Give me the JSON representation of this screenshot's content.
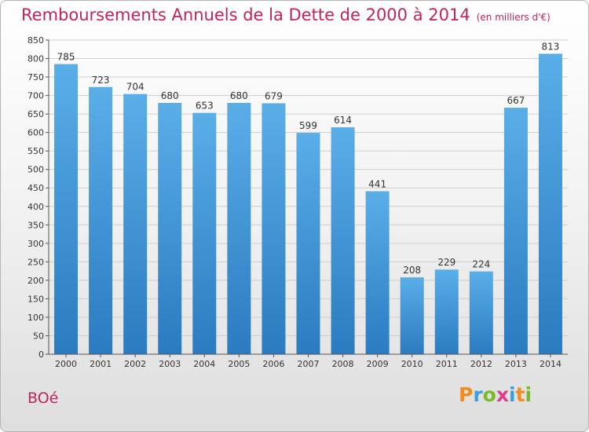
{
  "title": "Remboursements Annuels de la Dette de 2000 à 2014",
  "unit": "(en milliers d'€)",
  "town": "BOé",
  "logo": {
    "text": "Proxiti",
    "letters": [
      {
        "ch": "P",
        "color": "#f28c1e"
      },
      {
        "ch": "r",
        "color": "#3aa0d8"
      },
      {
        "ch": "o",
        "color": "#7ab929"
      },
      {
        "ch": "x",
        "color": "#e03d8a"
      },
      {
        "ch": "i",
        "color": "#3aa0d8"
      },
      {
        "ch": "t",
        "color": "#f28c1e"
      },
      {
        "ch": "i",
        "color": "#7ab929"
      }
    ]
  },
  "colors": {
    "bar_top": "#5aaee8",
    "bar_bottom": "#2a7bc0",
    "grid": "#cfcfcf",
    "title": "#c0245e"
  },
  "chart_data": {
    "type": "bar",
    "categories": [
      "2000",
      "2001",
      "2002",
      "2003",
      "2004",
      "2005",
      "2006",
      "2007",
      "2008",
      "2009",
      "2010",
      "2011",
      "2012",
      "2013",
      "2014"
    ],
    "values": [
      785,
      723,
      704,
      680,
      653,
      680,
      679,
      599,
      614,
      441,
      208,
      229,
      224,
      667,
      813
    ],
    "ylim": [
      0,
      850
    ],
    "yticks": [
      0,
      50,
      100,
      150,
      200,
      250,
      300,
      350,
      400,
      450,
      500,
      550,
      600,
      650,
      700,
      750,
      800,
      850
    ],
    "grid": true,
    "data_labels": true
  }
}
